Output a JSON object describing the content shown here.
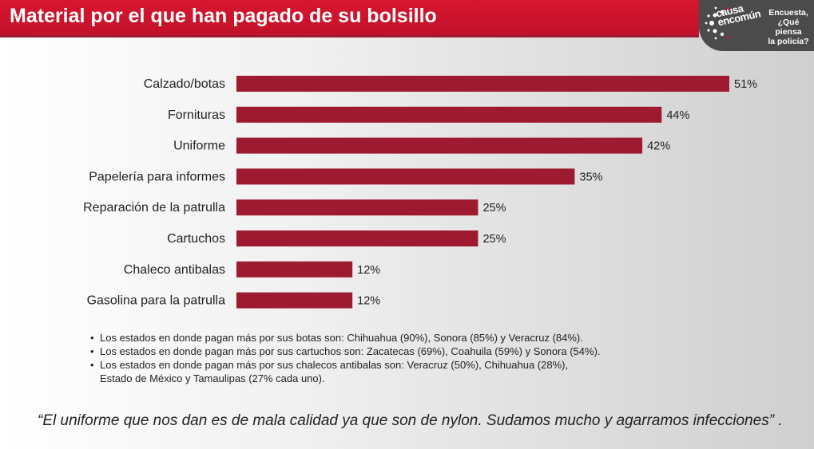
{
  "header": {
    "title": "Material por el que han pagado de su bolsillo",
    "brand_line1": "causa",
    "brand_line2": "encomún",
    "survey_line1": "Encuesta,",
    "survey_line2": "¿Qué piensa",
    "survey_line3": "la policía?"
  },
  "colors": {
    "bar": "#9e1a30",
    "header": "#d0142d",
    "logo_bg": "#4b4b4b"
  },
  "chart_data": {
    "type": "bar",
    "orientation": "horizontal",
    "title": "Material por el que han pagado de su bolsillo",
    "categories": [
      "Calzado/botas",
      "Fornituras",
      "Uniforme",
      "Papelería para informes",
      "Reparación de la patrulla",
      "Cartuchos",
      "Chaleco antibalas",
      "Gasolina para la patrulla"
    ],
    "values": [
      51,
      44,
      42,
      35,
      25,
      25,
      12,
      12
    ],
    "value_labels": [
      "51%",
      "44%",
      "42%",
      "35%",
      "25%",
      "25%",
      "12%",
      "12%"
    ],
    "unit": "%",
    "xlim": [
      0,
      51
    ],
    "xlabel": "",
    "ylabel": "",
    "grid": false,
    "legend": "none"
  },
  "notes": [
    {
      "line1": "Los estados en donde pagan más por sus botas son: Chihuahua (90%), Sonora (85%) y Veracruz (84%)."
    },
    {
      "line1": "Los estados en donde pagan más por sus cartuchos son: Zacatecas (69%), Coahuila (59%) y Sonora (54%)."
    },
    {
      "line1": "Los estados en donde pagan más por sus chalecos antibalas son: Veracruz (50%), Chihuahua (28%),",
      "line2": "Estado de México y Tamaulipas (27% cada uno)."
    }
  ],
  "quote": "“El uniforme que nos dan es de mala calidad ya que son de nylon. Sudamos mucho y agarramos infecciones” ."
}
